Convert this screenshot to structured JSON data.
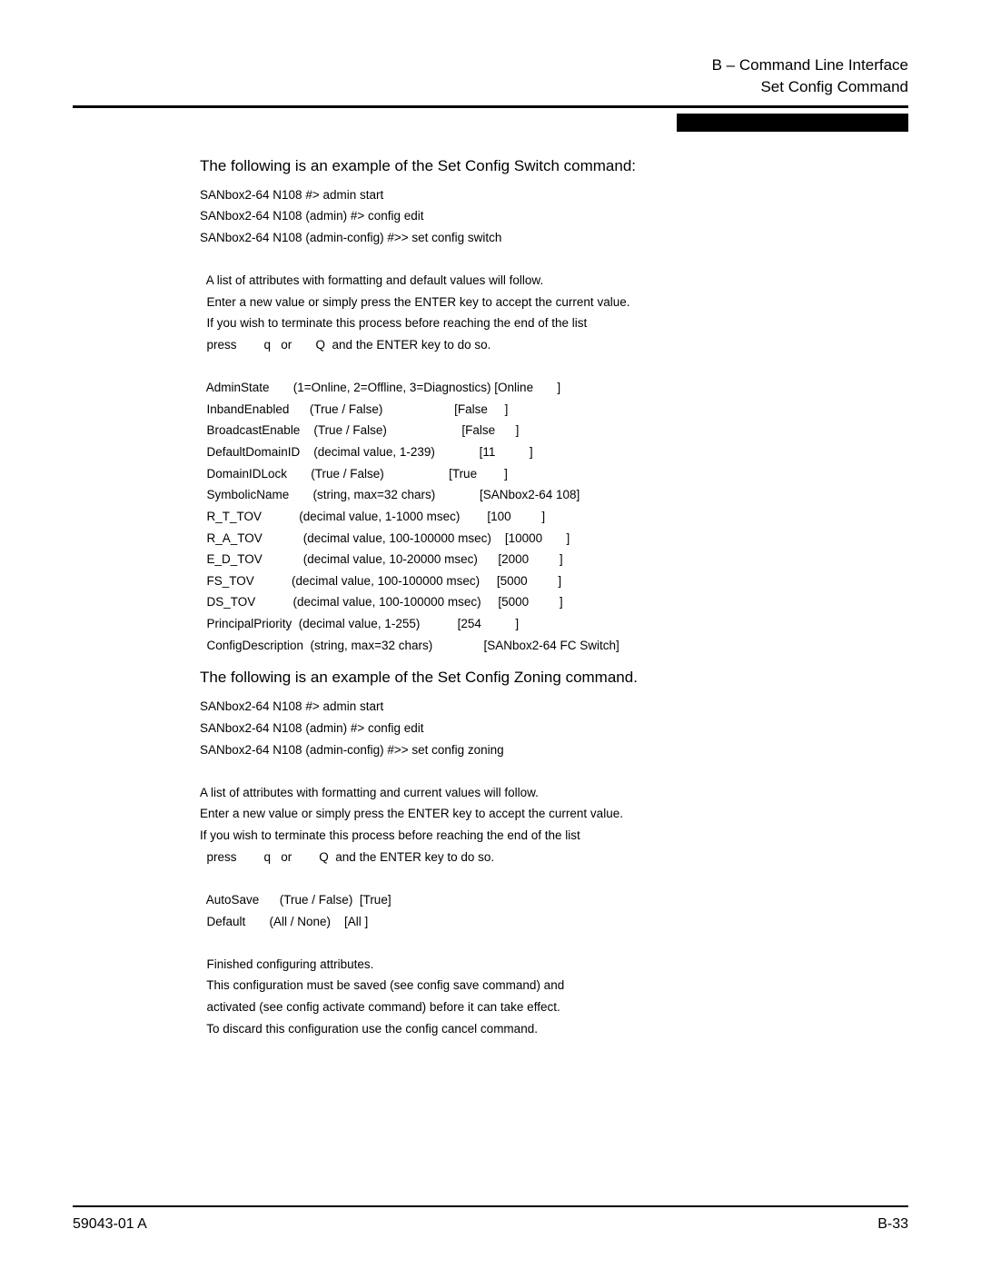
{
  "header": {
    "line1": "B – Command Line Interface",
    "line2": "Set Config Command"
  },
  "section1": {
    "intro": "The following is an example of the Set Config Switch command:",
    "terminal": "SANbox2-64 N108 #> admin start\nSANbox2-64 N108 (admin) #> config edit\nSANbox2-64 N108 (admin-config) #>> set config switch\n\n  A list of attributes with formatting and default values will follow.\n  Enter a new value or simply press the ENTER key to accept the current value.\n  If you wish to terminate this process before reaching the end of the list\n  press        q   or       Q  and the ENTER key to do so.\n\n  AdminState       (1=Online, 2=Offline, 3=Diagnostics) [Online       ]\n  InbandEnabled      (True / False)                     [False     ]\n  BroadcastEnable    (True / False)                      [False      ]\n  DefaultDomainID    (decimal value, 1-239)             [11          ]\n  DomainIDLock       (True / False)                   [True        ]\n  SymbolicName       (string, max=32 chars)             [SANbox2-64 108]\n  R_T_TOV           (decimal value, 1-1000 msec)        [100         ]\n  R_A_TOV            (decimal value, 100-100000 msec)    [10000       ]\n  E_D_TOV            (decimal value, 10-20000 msec)      [2000         ]\n  FS_TOV           (decimal value, 100-100000 msec)     [5000         ]\n  DS_TOV           (decimal value, 100-100000 msec)     [5000         ]\n  PrincipalPriority  (decimal value, 1-255)           [254          ]\n  ConfigDescription  (string, max=32 chars)               [SANbox2-64 FC Switch]"
  },
  "section2": {
    "intro": "The following is an example of the Set Config Zoning command.",
    "terminal": "SANbox2-64 N108 #> admin start\nSANbox2-64 N108 (admin) #> config edit\nSANbox2-64 N108 (admin-config) #>> set config zoning\n\nA list of attributes with formatting and current values will follow.\nEnter a new value or simply press the ENTER key to accept the current value.\nIf you wish to terminate this process before reaching the end of the list\n  press        q   or        Q  and the ENTER key to do so.\n\n  AutoSave      (True / False)  [True]\n  Default       (All / None)    [All ]\n\n  Finished configuring attributes.\n  This configuration must be saved (see config save command) and\n  activated (see config activate command) before it can take effect.\n  To discard this configuration use the config cancel command."
  },
  "footer": {
    "left": "59043-01  A",
    "right": "B-33"
  }
}
